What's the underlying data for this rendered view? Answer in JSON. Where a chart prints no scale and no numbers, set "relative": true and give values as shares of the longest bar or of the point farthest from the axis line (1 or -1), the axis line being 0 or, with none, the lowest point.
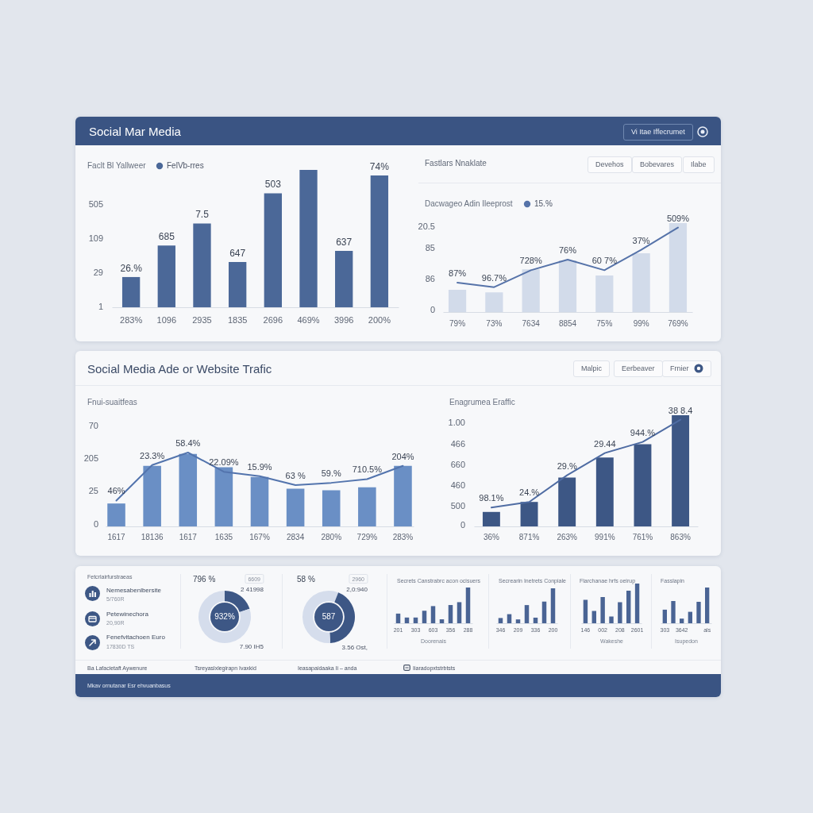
{
  "chart_data": [
    {
      "type": "bar",
      "relative": true,
      "title": "Social Mar Media",
      "legend_title": "Faclt Bl Yallweer",
      "annotations": [
        "Vi Itae Iffecrumet",
        "505",
        "109",
        "29",
        "1",
        "26.%",
        "685",
        "7.5",
        "647",
        "503",
        "637",
        "74%"
      ],
      "categories": [
        "283%",
        "1096",
        "2935",
        "1835",
        "2696",
        "469%",
        "3996",
        "200%"
      ],
      "series": [
        {
          "name": "FelVb-rres",
          "color": "#4b6898",
          "values": [
            0.22,
            0.45,
            0.61,
            0.33,
            0.83,
            1,
            0.41,
            0.96
          ]
        }
      ],
      "legend": "top left"
    },
    {
      "type": "bar",
      "relative": true,
      "title": "Fastlars Nnaklate",
      "legend_title": "Dacwageo Adin Ileeprost",
      "annotations": [
        "Devehos",
        "Bobevares",
        "Ilabe",
        "20.5",
        "85",
        "86",
        "0",
        "87%",
        "96.7%",
        "728%",
        "76%",
        "60 7%",
        "37%",
        "509%"
      ],
      "categories": [
        "79%",
        "73%",
        "7634",
        "8854",
        "75%",
        "99%",
        "769%"
      ],
      "series": [
        {
          "color": "#d2dbea",
          "values": [
            0.25,
            0.22,
            0.48,
            0.58,
            0.41,
            0.66,
            1
          ]
        },
        {
          "type": "line",
          "name": "15.%",
          "color": "#5673a9",
          "values": [
            0.33,
            0.28,
            0.47,
            0.59,
            0.47,
            0.7,
            0.95
          ]
        }
      ],
      "legend": "top left"
    },
    {
      "type": "bar",
      "relative": true,
      "title": "Social Media Ade or Website Trafic",
      "subtitle": "Fnui-suaitfeas",
      "annotations": [
        "Malpic",
        "Eerbeaver",
        "Frnier",
        "70",
        "205",
        "25",
        "0",
        "46%",
        "23.3%",
        "58.4%",
        "22.09%",
        "15.9%",
        "63 %",
        "59.%",
        "710.5%",
        "204%"
      ],
      "categories": [
        "1617",
        "18136",
        "1617",
        "1635",
        "167%",
        "2834",
        "280%",
        "729%",
        "283%"
      ],
      "series": [
        {
          "color": "#6a8fc5",
          "values": [
            0.31,
            0.82,
            0.98,
            0.8,
            0.67,
            0.51,
            0.49,
            0.53,
            0.82
          ]
        },
        {
          "type": "line",
          "color": "#5374ad",
          "values": [
            0.35,
            0.83,
            1,
            0.74,
            0.68,
            0.56,
            0.59,
            0.64,
            0.82
          ]
        }
      ]
    },
    {
      "type": "bar",
      "relative": true,
      "title": "Enagrumea Eraffic",
      "annotations": [
        "1.00",
        "466",
        "660",
        "460",
        "500",
        "0",
        "98.1%",
        "24.%",
        "29.%",
        "29.44",
        "944.%",
        "38 8.4"
      ],
      "categories": [
        "36%",
        "871%",
        "263%",
        "991%",
        "761%",
        "863%"
      ],
      "series": [
        {
          "color": "#3d5785",
          "values": [
            0.13,
            0.22,
            0.44,
            0.62,
            0.74,
            1
          ]
        },
        {
          "type": "line",
          "color": "#4f6ca3",
          "values": [
            0.17,
            0.22,
            0.46,
            0.66,
            0.76,
            0.96
          ]
        }
      ]
    },
    {
      "type": "other",
      "title": "Fetcrlairfurstraeas",
      "annotations": [
        "Nemesabenlbersite",
        "5/760R",
        "Petewinechora",
        "20,90R",
        "Fenefvitachoen Euro",
        "17830D TS"
      ]
    },
    {
      "type": "donut",
      "title": "796 %",
      "categories": [
        null,
        null
      ],
      "values": [
        20,
        80
      ],
      "colors": [
        "#3d5785",
        "#d5ddec"
      ],
      "annotations": [
        "6609",
        "2 41998",
        "932%",
        "7.90 IH5"
      ]
    },
    {
      "type": "donut",
      "title": "58 %",
      "categories": [
        null,
        null,
        null
      ],
      "values": [
        6,
        43,
        51
      ],
      "colors": [
        "#d5ddec",
        "#3d5785",
        "#d5ddec"
      ],
      "annotations": [
        "2960",
        "2,0:940",
        "587",
        "3.56 Ost,"
      ]
    },
    {
      "type": "bar",
      "relative": true,
      "title": "Secrets Canstrabrc acon ocisuers",
      "xlabel": "Doorenais",
      "categories": [
        "201",
        null,
        "303",
        null,
        "603",
        null,
        "356",
        null,
        "288"
      ],
      "values": [
        0.27,
        0.16,
        0.16,
        0.35,
        0.48,
        0.11,
        0.51,
        0.59,
        1
      ],
      "color": "#4a6494"
    },
    {
      "type": "bar",
      "relative": true,
      "title": "Secrearin Inetrets Conpiale",
      "categories": [
        "346",
        null,
        "209",
        null,
        "336",
        null,
        "200"
      ],
      "values": [
        0.15,
        0.26,
        0.11,
        0.52,
        0.16,
        0.62,
        1
      ],
      "color": "#4a6494"
    },
    {
      "type": "bar",
      "relative": true,
      "title": "Flarchanae hrfs oeirup",
      "xlabel": "Wakeshe",
      "categories": [
        "146",
        null,
        "002",
        null,
        "208",
        null,
        "2601"
      ],
      "values": [
        0.59,
        0.31,
        0.66,
        0.17,
        0.53,
        0.82,
        1
      ],
      "color": "#4a6494"
    },
    {
      "type": "bar",
      "relative": true,
      "title": "Fasslapin",
      "xlabel": "Isupedon",
      "categories": [
        "303",
        null,
        "3642",
        null,
        null,
        "als"
      ],
      "values": [
        0.38,
        0.62,
        0.13,
        0.32,
        0.6,
        1
      ],
      "color": "#4a6494"
    },
    {
      "type": "other",
      "annotations": [
        "Ba Lafacietaft Aywenure",
        "Tsreyaslxlegirapn Ivaxkid",
        "Ieasapaidaaka Ii – anda",
        "Iiaradopxtstrbtsts",
        "Mkav ornutanar Esr ehvuanbasus"
      ]
    }
  ]
}
